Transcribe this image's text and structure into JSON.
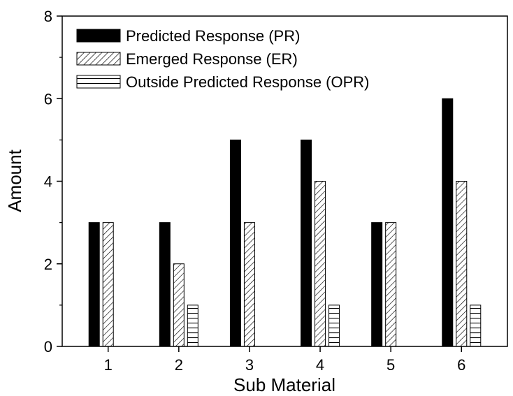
{
  "chart_data": {
    "type": "bar",
    "title": "",
    "xlabel": "Sub Material",
    "ylabel": "Amount",
    "categories": [
      "1",
      "2",
      "3",
      "4",
      "5",
      "6"
    ],
    "ylim": [
      0,
      8
    ],
    "yticks": [
      "0",
      "2",
      "4",
      "6",
      "8"
    ],
    "grid": false,
    "legend_position": "top-left",
    "series": [
      {
        "name": "Predicted Response (PR)",
        "values": [
          3,
          3,
          5,
          5,
          3,
          6
        ],
        "fill": "solid",
        "color": "#000000"
      },
      {
        "name": "Emerged Response (ER)",
        "values": [
          3,
          2,
          3,
          4,
          3,
          4
        ],
        "fill": "diagonal-hatch",
        "color": "#000000"
      },
      {
        "name": "Outside Predicted Response (OPR)",
        "values": [
          0,
          1,
          0,
          1,
          0,
          1
        ],
        "fill": "horizontal-hatch",
        "color": "#000000"
      }
    ]
  }
}
